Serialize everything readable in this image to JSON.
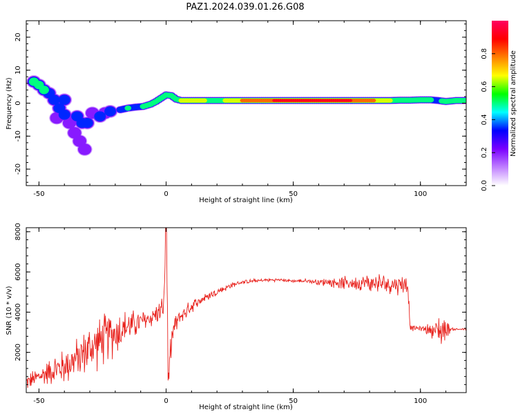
{
  "title": "PAZ1.2024.039.01.26.G08",
  "chart_data": [
    {
      "type": "heatmap",
      "xlabel": "Height of straight line (km)",
      "ylabel": "Frequency (Hz)",
      "xlim": [
        -55,
        118
      ],
      "ylim": [
        -25,
        25
      ],
      "xticks": [
        -50,
        0,
        50,
        100
      ],
      "yticks": [
        -20,
        -10,
        0,
        10,
        20
      ],
      "colorbar": {
        "label": "Normalized spectral amplitude",
        "range": [
          0,
          1
        ],
        "ticks": [
          0.0,
          0.2,
          0.4,
          0.6,
          0.8
        ],
        "tick_labels": [
          "0.0",
          "0.2",
          "0.4",
          "0.6",
          "0.8"
        ],
        "colormap": [
          "#ffffff",
          "#c080ff",
          "#7a00ff",
          "#0000ff",
          "#00ffff",
          "#00ff00",
          "#ffff00",
          "#ff8000",
          "#ff0000",
          "#ff0060"
        ]
      },
      "ridge": [
        {
          "x": -52,
          "y": 6.5,
          "a": 0.55
        },
        {
          "x": -50,
          "y": 5.5,
          "a": 0.6
        },
        {
          "x": -48,
          "y": 4.0,
          "a": 0.5
        },
        {
          "x": -46,
          "y": 3.0,
          "a": 0.4
        },
        {
          "x": -44,
          "y": 1.0,
          "a": 0.45
        },
        {
          "x": -42,
          "y": -1.5,
          "a": 0.35
        },
        {
          "x": -40,
          "y": -3.5,
          "a": 0.4
        },
        {
          "x": -38,
          "y": -6.0,
          "a": 0.3
        },
        {
          "x": -36,
          "y": -9.0,
          "a": 0.3
        },
        {
          "x": -34,
          "y": -11.5,
          "a": 0.25
        },
        {
          "x": -32,
          "y": -14.0,
          "a": 0.2
        },
        {
          "x": -43,
          "y": -4.5,
          "a": 0.3
        },
        {
          "x": -40,
          "y": 1.0,
          "a": 0.35
        },
        {
          "x": -35,
          "y": -4.0,
          "a": 0.35
        },
        {
          "x": -33,
          "y": -6.0,
          "a": 0.4
        },
        {
          "x": -31,
          "y": -6.0,
          "a": 0.35
        },
        {
          "x": -29,
          "y": -3.0,
          "a": 0.3
        },
        {
          "x": -26,
          "y": -4.0,
          "a": 0.35
        },
        {
          "x": -24,
          "y": -3.0,
          "a": 0.3
        },
        {
          "x": -22,
          "y": -2.5,
          "a": 0.35
        },
        {
          "x": -18,
          "y": -2.0,
          "a": 0.45
        },
        {
          "x": -15,
          "y": -1.5,
          "a": 0.5
        },
        {
          "x": -12,
          "y": -1.2,
          "a": 0.45
        },
        {
          "x": -9,
          "y": -1.0,
          "a": 0.5
        },
        {
          "x": -6,
          "y": -0.3,
          "a": 0.5
        },
        {
          "x": -4,
          "y": 0.5,
          "a": 0.5
        },
        {
          "x": -2,
          "y": 1.5,
          "a": 0.5
        },
        {
          "x": 0,
          "y": 2.5,
          "a": 0.55
        },
        {
          "x": 2,
          "y": 2.3,
          "a": 0.5
        },
        {
          "x": 4,
          "y": 1.2,
          "a": 0.55
        },
        {
          "x": 6,
          "y": 0.8,
          "a": 0.7
        },
        {
          "x": 10,
          "y": 0.8,
          "a": 0.75
        },
        {
          "x": 15,
          "y": 0.8,
          "a": 0.65
        },
        {
          "x": 20,
          "y": 0.8,
          "a": 0.6
        },
        {
          "x": 25,
          "y": 0.8,
          "a": 0.7
        },
        {
          "x": 30,
          "y": 0.8,
          "a": 0.8
        },
        {
          "x": 35,
          "y": 0.8,
          "a": 0.85
        },
        {
          "x": 40,
          "y": 0.8,
          "a": 0.9
        },
        {
          "x": 45,
          "y": 0.8,
          "a": 0.95
        },
        {
          "x": 50,
          "y": 0.8,
          "a": 0.95
        },
        {
          "x": 55,
          "y": 0.8,
          "a": 0.95
        },
        {
          "x": 60,
          "y": 0.8,
          "a": 0.95
        },
        {
          "x": 65,
          "y": 0.8,
          "a": 0.95
        },
        {
          "x": 70,
          "y": 0.8,
          "a": 0.95
        },
        {
          "x": 75,
          "y": 0.8,
          "a": 0.9
        },
        {
          "x": 80,
          "y": 0.8,
          "a": 0.85
        },
        {
          "x": 84,
          "y": 0.8,
          "a": 0.75
        },
        {
          "x": 88,
          "y": 0.8,
          "a": 0.65
        },
        {
          "x": 92,
          "y": 0.9,
          "a": 0.6
        },
        {
          "x": 96,
          "y": 0.9,
          "a": 0.55
        },
        {
          "x": 100,
          "y": 1.0,
          "a": 0.5
        },
        {
          "x": 104,
          "y": 1.0,
          "a": 0.5
        },
        {
          "x": 107,
          "y": 0.8,
          "a": 0.45
        },
        {
          "x": 110,
          "y": 0.5,
          "a": 0.55
        },
        {
          "x": 114,
          "y": 0.8,
          "a": 0.6
        },
        {
          "x": 118,
          "y": 0.8,
          "a": 0.6
        }
      ]
    },
    {
      "type": "line",
      "xlabel": "Height of straight line (km)",
      "ylabel": "SNR (10 * v/v)",
      "xlim": [
        -55,
        118
      ],
      "ylim": [
        0,
        8200
      ],
      "xticks": [
        -50,
        0,
        50,
        100
      ],
      "yticks": [
        2000,
        4000,
        6000,
        8000
      ],
      "color": "#e8211c",
      "series": [
        {
          "x": [
            -55,
            -50,
            -45,
            -40,
            -35,
            -30,
            -25,
            -20,
            -15,
            -10,
            -5,
            -1,
            0,
            1,
            2,
            3,
            5,
            10,
            15,
            20,
            25,
            30,
            35,
            40,
            45,
            50,
            55,
            60,
            65,
            70,
            75,
            80,
            85,
            90,
            95,
            96,
            100,
            105,
            108,
            110,
            112,
            115,
            118
          ],
          "y": [
            500,
            800,
            1100,
            1300,
            1700,
            2200,
            2600,
            3000,
            3300,
            3500,
            3800,
            4200,
            7800,
            1200,
            2500,
            3200,
            3700,
            4300,
            4700,
            5000,
            5300,
            5500,
            5550,
            5600,
            5600,
            5550,
            5550,
            5500,
            5500,
            5450,
            5450,
            5450,
            5400,
            5400,
            5400,
            3200,
            3200,
            3100,
            3100,
            3200,
            3150,
            3150,
            3150
          ],
          "noise": [
            400,
            500,
            700,
            900,
            1000,
            1200,
            1300,
            1200,
            800,
            600,
            500,
            600,
            0,
            300,
            600,
            500,
            400,
            300,
            250,
            200,
            150,
            100,
            100,
            80,
            80,
            80,
            100,
            150,
            250,
            300,
            350,
            450,
            500,
            500,
            500,
            150,
            100,
            400,
            900,
            600,
            80,
            60,
            60
          ]
        }
      ]
    }
  ]
}
